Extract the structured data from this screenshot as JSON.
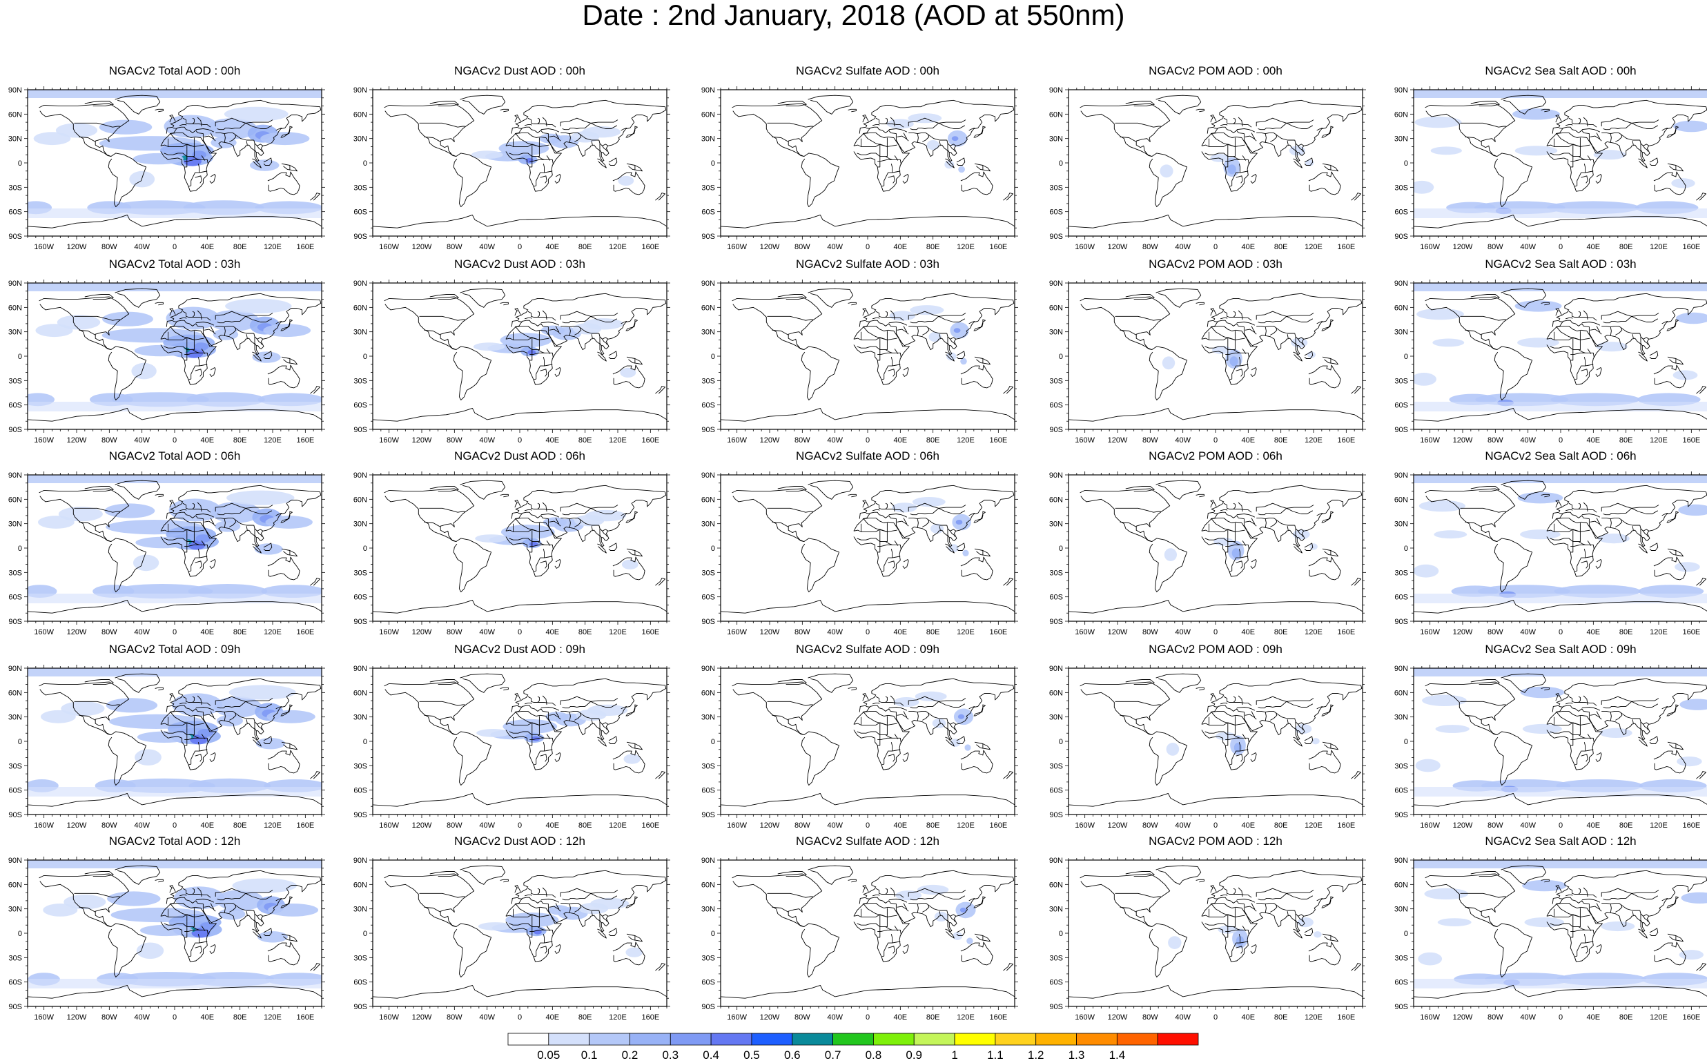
{
  "title": "Date : 2nd January, 2018 (AOD at 550nm)",
  "panels": [
    {
      "title": "NGACv2 Total AOD : 00h",
      "species": "total",
      "hour": 0
    },
    {
      "title": "NGACv2 Dust AOD : 00h",
      "species": "dust",
      "hour": 0
    },
    {
      "title": "NGACv2 Sulfate AOD : 00h",
      "species": "sulfate",
      "hour": 0
    },
    {
      "title": "NGACv2 POM AOD : 00h",
      "species": "pom",
      "hour": 0
    },
    {
      "title": "NGACv2 Sea Salt AOD : 00h",
      "species": "seasalt",
      "hour": 0
    },
    {
      "title": "NGACv2 Total AOD : 03h",
      "species": "total",
      "hour": 3
    },
    {
      "title": "NGACv2 Dust AOD : 03h",
      "species": "dust",
      "hour": 3
    },
    {
      "title": "NGACv2 Sulfate AOD : 03h",
      "species": "sulfate",
      "hour": 3
    },
    {
      "title": "NGACv2 POM AOD : 03h",
      "species": "pom",
      "hour": 3
    },
    {
      "title": "NGACv2 Sea Salt AOD : 03h",
      "species": "seasalt",
      "hour": 3
    },
    {
      "title": "NGACv2 Total AOD : 06h",
      "species": "total",
      "hour": 6
    },
    {
      "title": "NGACv2 Dust AOD : 06h",
      "species": "dust",
      "hour": 6
    },
    {
      "title": "NGACv2 Sulfate AOD : 06h",
      "species": "sulfate",
      "hour": 6
    },
    {
      "title": "NGACv2 POM AOD : 06h",
      "species": "pom",
      "hour": 6
    },
    {
      "title": "NGACv2 Sea Salt AOD : 06h",
      "species": "seasalt",
      "hour": 6
    },
    {
      "title": "NGACv2 Total AOD : 09h",
      "species": "total",
      "hour": 9
    },
    {
      "title": "NGACv2 Dust AOD : 09h",
      "species": "dust",
      "hour": 9
    },
    {
      "title": "NGACv2 Sulfate AOD : 09h",
      "species": "sulfate",
      "hour": 9
    },
    {
      "title": "NGACv2 POM AOD : 09h",
      "species": "pom",
      "hour": 9
    },
    {
      "title": "NGACv2 Sea Salt  AOD : 09h",
      "species": "seasalt",
      "hour": 9
    },
    {
      "title": "NGACv2 Total AOD  : 12h",
      "species": "total",
      "hour": 12
    },
    {
      "title": "NGACv2 Dust AOD : 12h",
      "species": "dust",
      "hour": 12
    },
    {
      "title": "NGACv2 Sulfate AOD : 12h",
      "species": "sulfate",
      "hour": 12
    },
    {
      "title": "NGACv2 POM  AOD : 12h",
      "species": "pom",
      "hour": 12
    },
    {
      "title": "NGACv2 Sea Salt AOD : 12h",
      "species": "seasalt",
      "hour": 12
    }
  ],
  "lat_labels": [
    "90N",
    "60N",
    "30N",
    "0",
    "30S",
    "60S",
    "90S"
  ],
  "lon_labels": [
    "160W",
    "120W",
    "80W",
    "40W",
    "0",
    "40E",
    "80E",
    "120E",
    "160E"
  ],
  "colorbar": {
    "colors": [
      "#ffffff",
      "#d4e0fb",
      "#b4c8f8",
      "#98b2f6",
      "#7f9af4",
      "#6478f2",
      "#1e5fff",
      "#0a8a9a",
      "#22c61e",
      "#7ef00a",
      "#c4f55a",
      "#ffff00",
      "#ffd21e",
      "#ffb200",
      "#ff8c00",
      "#ff6400",
      "#ff0f00"
    ],
    "labels": [
      "0.05",
      "0.1",
      "0.2",
      "0.3",
      "0.4",
      "0.5",
      "0.6",
      "0.7",
      "0.8",
      "0.9",
      "1",
      "1.1",
      "1.2",
      "1.3",
      "1.4"
    ]
  }
}
